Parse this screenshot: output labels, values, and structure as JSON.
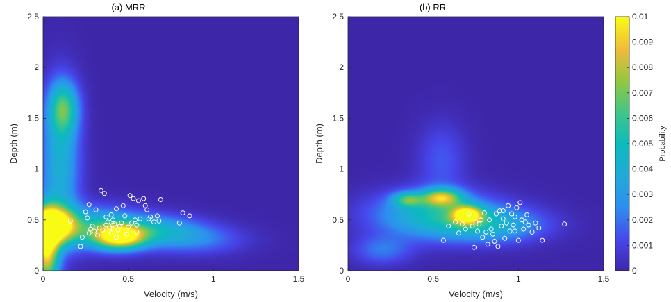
{
  "chart_data": [
    {
      "type": "heatmap",
      "title": "(a) MRR",
      "xlabel": "Velocity (m/s)",
      "ylabel": "Depth (m)",
      "xlim": [
        0,
        1.5
      ],
      "ylim": [
        0,
        2.5
      ],
      "x_ticks": [
        "0",
        "0.5",
        "1",
        "1.5"
      ],
      "y_ticks": [
        "0",
        "0.5",
        "1",
        "1.5",
        "2",
        "2.5"
      ],
      "density_regions": [
        {
          "x": 0.05,
          "y": 0.45,
          "sx": 0.09,
          "sy": 0.12,
          "value": 0.0105
        },
        {
          "x": 0.02,
          "y": 0.2,
          "sx": 0.05,
          "sy": 0.25,
          "value": 0.009
        },
        {
          "x": 0.12,
          "y": 1.6,
          "sx": 0.06,
          "sy": 0.18,
          "value": 0.005
        },
        {
          "x": 0.1,
          "y": 1.05,
          "sx": 0.08,
          "sy": 0.5,
          "value": 0.004
        },
        {
          "x": 0.45,
          "y": 0.33,
          "sx": 0.1,
          "sy": 0.08,
          "value": 0.0085
        },
        {
          "x": 0.3,
          "y": 0.42,
          "sx": 0.2,
          "sy": 0.14,
          "value": 0.0045
        },
        {
          "x": 0.65,
          "y": 0.4,
          "sx": 0.2,
          "sy": 0.1,
          "value": 0.0035
        },
        {
          "x": 0.9,
          "y": 0.3,
          "sx": 0.2,
          "sy": 0.1,
          "value": 0.002
        }
      ],
      "points": [
        [
          0.16,
          0.49
        ],
        [
          0.22,
          0.24
        ],
        [
          0.23,
          0.33
        ],
        [
          0.25,
          0.58
        ],
        [
          0.26,
          0.52
        ],
        [
          0.27,
          0.65
        ],
        [
          0.27,
          0.37
        ],
        [
          0.28,
          0.41
        ],
        [
          0.29,
          0.44
        ],
        [
          0.3,
          0.39
        ],
        [
          0.31,
          0.6
        ],
        [
          0.32,
          0.35
        ],
        [
          0.33,
          0.42
        ],
        [
          0.34,
          0.79
        ],
        [
          0.35,
          0.4
        ],
        [
          0.36,
          0.76
        ],
        [
          0.37,
          0.45
        ],
        [
          0.37,
          0.53
        ],
        [
          0.38,
          0.48
        ],
        [
          0.39,
          0.42
        ],
        [
          0.4,
          0.55
        ],
        [
          0.4,
          0.37
        ],
        [
          0.41,
          0.5
        ],
        [
          0.41,
          0.45
        ],
        [
          0.42,
          0.46
        ],
        [
          0.43,
          0.61
        ],
        [
          0.43,
          0.33
        ],
        [
          0.44,
          0.4
        ],
        [
          0.45,
          0.44
        ],
        [
          0.46,
          0.47
        ],
        [
          0.47,
          0.64
        ],
        [
          0.48,
          0.54
        ],
        [
          0.49,
          0.36
        ],
        [
          0.5,
          0.43
        ],
        [
          0.51,
          0.74
        ],
        [
          0.52,
          0.47
        ],
        [
          0.53,
          0.71
        ],
        [
          0.54,
          0.5
        ],
        [
          0.55,
          0.45
        ],
        [
          0.55,
          0.38
        ],
        [
          0.56,
          0.69
        ],
        [
          0.57,
          0.51
        ],
        [
          0.59,
          0.71
        ],
        [
          0.6,
          0.64
        ],
        [
          0.61,
          0.6
        ],
        [
          0.62,
          0.51
        ],
        [
          0.63,
          0.53
        ],
        [
          0.65,
          0.48
        ],
        [
          0.67,
          0.54
        ],
        [
          0.68,
          0.49
        ],
        [
          0.69,
          0.7
        ],
        [
          0.8,
          0.47
        ],
        [
          0.82,
          0.57
        ],
        [
          0.86,
          0.54
        ]
      ]
    },
    {
      "type": "heatmap",
      "title": "(b) RR",
      "xlabel": "Velocity (m/s)",
      "ylabel": "Depth (m)",
      "xlim": [
        0,
        1.5
      ],
      "ylim": [
        0,
        2.5
      ],
      "x_ticks": [
        "0",
        "0.5",
        "1",
        "1.5"
      ],
      "y_ticks": [
        "0",
        "0.5",
        "1",
        "1.5",
        "2",
        "2.5"
      ],
      "density_regions": [
        {
          "x": 0.7,
          "y": 0.55,
          "sx": 0.06,
          "sy": 0.06,
          "value": 0.0085
        },
        {
          "x": 0.55,
          "y": 0.72,
          "sx": 0.08,
          "sy": 0.06,
          "value": 0.0065
        },
        {
          "x": 0.5,
          "y": 0.55,
          "sx": 0.25,
          "sy": 0.16,
          "value": 0.0045
        },
        {
          "x": 0.85,
          "y": 0.45,
          "sx": 0.22,
          "sy": 0.12,
          "value": 0.0035
        },
        {
          "x": 0.35,
          "y": 0.7,
          "sx": 0.06,
          "sy": 0.05,
          "value": 0.0045
        },
        {
          "x": 0.55,
          "y": 1.1,
          "sx": 0.1,
          "sy": 0.25,
          "value": 0.0015
        },
        {
          "x": 0.2,
          "y": 0.2,
          "sx": 0.12,
          "sy": 0.1,
          "value": 0.002
        }
      ],
      "points": [
        [
          0.56,
          0.3
        ],
        [
          0.59,
          0.44
        ],
        [
          0.63,
          0.48
        ],
        [
          0.65,
          0.37
        ],
        [
          0.67,
          0.46
        ],
        [
          0.69,
          0.41
        ],
        [
          0.71,
          0.56
        ],
        [
          0.73,
          0.44
        ],
        [
          0.74,
          0.23
        ],
        [
          0.75,
          0.48
        ],
        [
          0.76,
          0.39
        ],
        [
          0.77,
          0.46
        ],
        [
          0.78,
          0.5
        ],
        [
          0.79,
          0.33
        ],
        [
          0.8,
          0.57
        ],
        [
          0.81,
          0.38
        ],
        [
          0.82,
          0.26
        ],
        [
          0.83,
          0.5
        ],
        [
          0.84,
          0.41
        ],
        [
          0.85,
          0.36
        ],
        [
          0.86,
          0.29
        ],
        [
          0.87,
          0.56
        ],
        [
          0.88,
          0.24
        ],
        [
          0.89,
          0.59
        ],
        [
          0.9,
          0.44
        ],
        [
          0.91,
          0.51
        ],
        [
          0.92,
          0.32
        ],
        [
          0.93,
          0.47
        ],
        [
          0.94,
          0.64
        ],
        [
          0.95,
          0.39
        ],
        [
          0.96,
          0.56
        ],
        [
          0.97,
          0.45
        ],
        [
          0.98,
          0.53
        ],
        [
          0.99,
          0.62
        ],
        [
          1.0,
          0.3
        ],
        [
          1.01,
          0.67
        ],
        [
          1.02,
          0.5
        ],
        [
          1.03,
          0.41
        ],
        [
          1.04,
          0.48
        ],
        [
          1.05,
          0.55
        ],
        [
          1.06,
          0.45
        ],
        [
          1.08,
          0.38
        ],
        [
          1.1,
          0.47
        ],
        [
          1.12,
          0.42
        ],
        [
          1.14,
          0.3
        ],
        [
          1.27,
          0.46
        ],
        [
          0.98,
          0.39
        ],
        [
          0.91,
          0.59
        ]
      ]
    }
  ],
  "colorbar": {
    "label": "Probability",
    "min": 0,
    "max": 0.01,
    "ticks": [
      "0",
      "0.001",
      "0.002",
      "0.003",
      "0.004",
      "0.005",
      "0.006",
      "0.007",
      "0.008",
      "0.009",
      "0.01"
    ],
    "colormap": "parula"
  }
}
